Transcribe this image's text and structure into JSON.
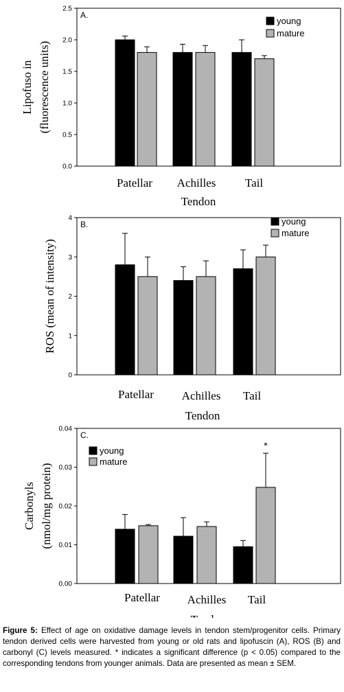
{
  "chart_data": [
    {
      "type": "bar",
      "panel_label": "A.",
      "ylabel": "Lipofuso in",
      "ylabel2": "(fluorescence units)",
      "xlabel": "Tendon",
      "categories": [
        "Patellar",
        "Achilles",
        "Tail"
      ],
      "ylim": [
        0,
        2.5
      ],
      "yticks": [
        "0.0",
        "0.5",
        "1.0",
        "1.5",
        "2.0",
        "2.5"
      ],
      "legend_position": "top-right",
      "series": [
        {
          "name": "young",
          "color": "#000000",
          "values": [
            2.0,
            1.8,
            1.8
          ],
          "errors": [
            0.06,
            0.13,
            0.2
          ]
        },
        {
          "name": "mature",
          "color": "#b3b3b3",
          "values": [
            1.8,
            1.8,
            1.7
          ],
          "errors": [
            0.09,
            0.11,
            0.05
          ]
        }
      ],
      "annotations": []
    },
    {
      "type": "bar",
      "panel_label": "B.",
      "ylabel": "ROS (mean of intensity)",
      "ylabel2": "",
      "xlabel": "Tendon",
      "categories": [
        "Patellar",
        "Achilles",
        "Tail"
      ],
      "ylim": [
        0,
        4
      ],
      "yticks": [
        "0",
        "1",
        "2",
        "3",
        "4"
      ],
      "legend_position": "top-right",
      "series": [
        {
          "name": "young",
          "color": "#000000",
          "values": [
            2.8,
            2.4,
            2.7
          ],
          "errors": [
            0.8,
            0.35,
            0.48
          ]
        },
        {
          "name": "mature",
          "color": "#b3b3b3",
          "values": [
            2.5,
            2.5,
            3.0
          ],
          "errors": [
            0.5,
            0.4,
            0.3
          ]
        }
      ],
      "annotations": []
    },
    {
      "type": "bar",
      "panel_label": "C.",
      "ylabel": "Carbonyls",
      "ylabel2": "(nmol/mg protein)",
      "xlabel": "Tendon",
      "categories": [
        "Patellar",
        "Achilles",
        "Tail"
      ],
      "ylim": [
        0,
        0.04
      ],
      "yticks": [
        "0.00",
        "0.01",
        "0.02",
        "0.03",
        "0.04"
      ],
      "legend_position": "top-left",
      "series": [
        {
          "name": "young",
          "color": "#000000",
          "values": [
            0.014,
            0.0122,
            0.0095
          ],
          "errors": [
            0.0038,
            0.0048,
            0.0016
          ]
        },
        {
          "name": "mature",
          "color": "#b3b3b3",
          "values": [
            0.0149,
            0.0147,
            0.0248
          ],
          "errors": [
            0.0003,
            0.0012,
            0.0088
          ]
        }
      ],
      "annotations": [
        {
          "category": "Tail",
          "series": "mature",
          "text": "*"
        }
      ]
    }
  ],
  "caption": {
    "label": "Figure 5:",
    "text": "Effect of age on oxidative damage levels in tendon stem/progenitor cells. Primary tendon derived cells were harvested from young or old rats and lipofuscin (A), ROS (B) and carbonyl (C) levels measured. * indicates a significant difference (p < 0.05) compared to the corresponding tendons from younger animals. Data are presented as mean ± SEM."
  }
}
